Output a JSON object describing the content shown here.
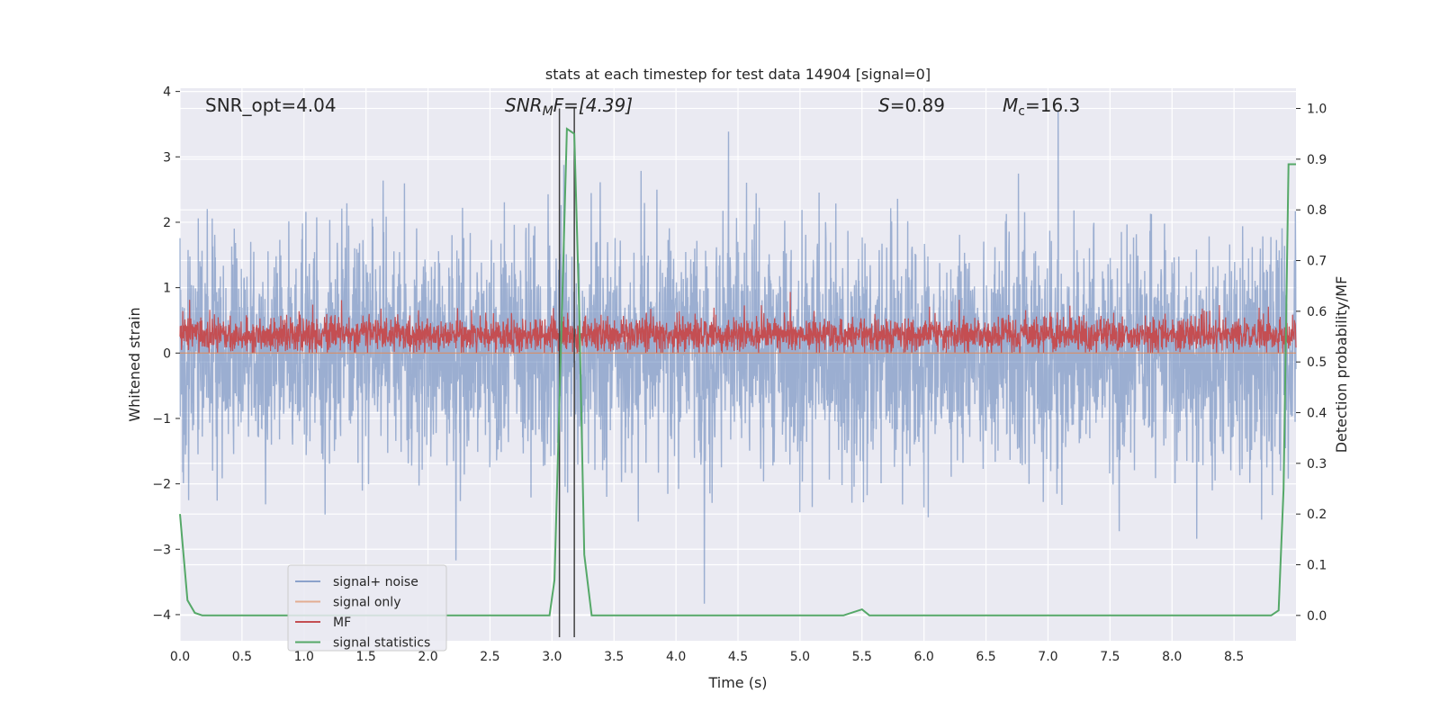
{
  "chart_data": {
    "type": "line",
    "title": "stats at each timestep for test data 14904 [signal=0]",
    "xlabel": "Time (s)",
    "ylabel": "Whitened strain",
    "ylabel_right": "Detection probability/MF",
    "xlim": [
      0,
      9
    ],
    "ylim": [
      -4.4,
      4.05
    ],
    "ylim_right": [
      -0.05,
      1.04
    ],
    "x_ticks": [
      "0.0",
      "0.5",
      "1.0",
      "1.5",
      "2.0",
      "2.5",
      "3.0",
      "3.5",
      "4.0",
      "4.5",
      "5.0",
      "5.5",
      "6.0",
      "6.5",
      "7.0",
      "7.5",
      "8.0",
      "8.5"
    ],
    "y_ticks": [
      "4",
      "3",
      "2",
      "1",
      "0",
      "−1",
      "−2",
      "−3",
      "−4"
    ],
    "y_ticks_right": [
      "1.0",
      "0.9",
      "0.8",
      "0.7",
      "0.6",
      "0.5",
      "0.4",
      "0.3",
      "0.2",
      "0.1",
      "0.0"
    ],
    "grid": true,
    "legend_position": "lower-left",
    "annotations": {
      "snr_opt": "SNR_opt=4.04",
      "snr_mf_main": "SNR",
      "snr_mf_sub": "M",
      "snr_mf_rest": "F=[4.39]",
      "s_main": "S",
      "s_rest": "=0.89",
      "mc_main": "M",
      "mc_sub": "c",
      "mc_rest": "=16.3"
    },
    "vertical_lines_x": [
      3.06,
      3.18
    ],
    "series": [
      {
        "name": "signal+ noise",
        "color": "#4c72b0",
        "description_values": "noise band roughly -1.7 to 1.7 with spikes to about 3.7 and -4",
        "approx_range": [
          -4.0,
          3.7
        ]
      },
      {
        "name": "signal only",
        "color": "#dd8452",
        "values_flat": 0.0
      },
      {
        "name": "MF",
        "color": "#c44e52",
        "approx_range": [
          0.0,
          1.0
        ]
      },
      {
        "name": "signal statistics",
        "color": "#55a868",
        "axis": "right",
        "x": [
          0.0,
          0.06,
          0.12,
          0.18,
          0.3,
          0.8,
          1.0,
          2.0,
          2.98,
          3.02,
          3.08,
          3.12,
          3.18,
          3.22,
          3.26,
          3.32,
          3.4,
          4.0,
          5.0,
          5.35,
          5.5,
          5.56,
          5.6,
          6.0,
          7.0,
          8.0,
          8.8,
          8.86,
          8.9,
          8.94,
          9.0
        ],
        "y": [
          0.2,
          0.03,
          0.005,
          0.0,
          0.0,
          0.0,
          0.0,
          0.0,
          0.0,
          0.07,
          0.6,
          0.96,
          0.95,
          0.6,
          0.12,
          0.0,
          0.0,
          0.0,
          0.0,
          0.0,
          0.012,
          0.0,
          0.0,
          0.0,
          0.0,
          0.0,
          0.0,
          0.01,
          0.25,
          0.89,
          0.89
        ]
      }
    ]
  },
  "colors": {
    "background": "#eaeaf2",
    "grid": "#ffffff",
    "noise": "#4c72b0",
    "signal_only": "#dd8452",
    "mf": "#c44e52",
    "stats": "#55a868",
    "vline": "#404040"
  }
}
